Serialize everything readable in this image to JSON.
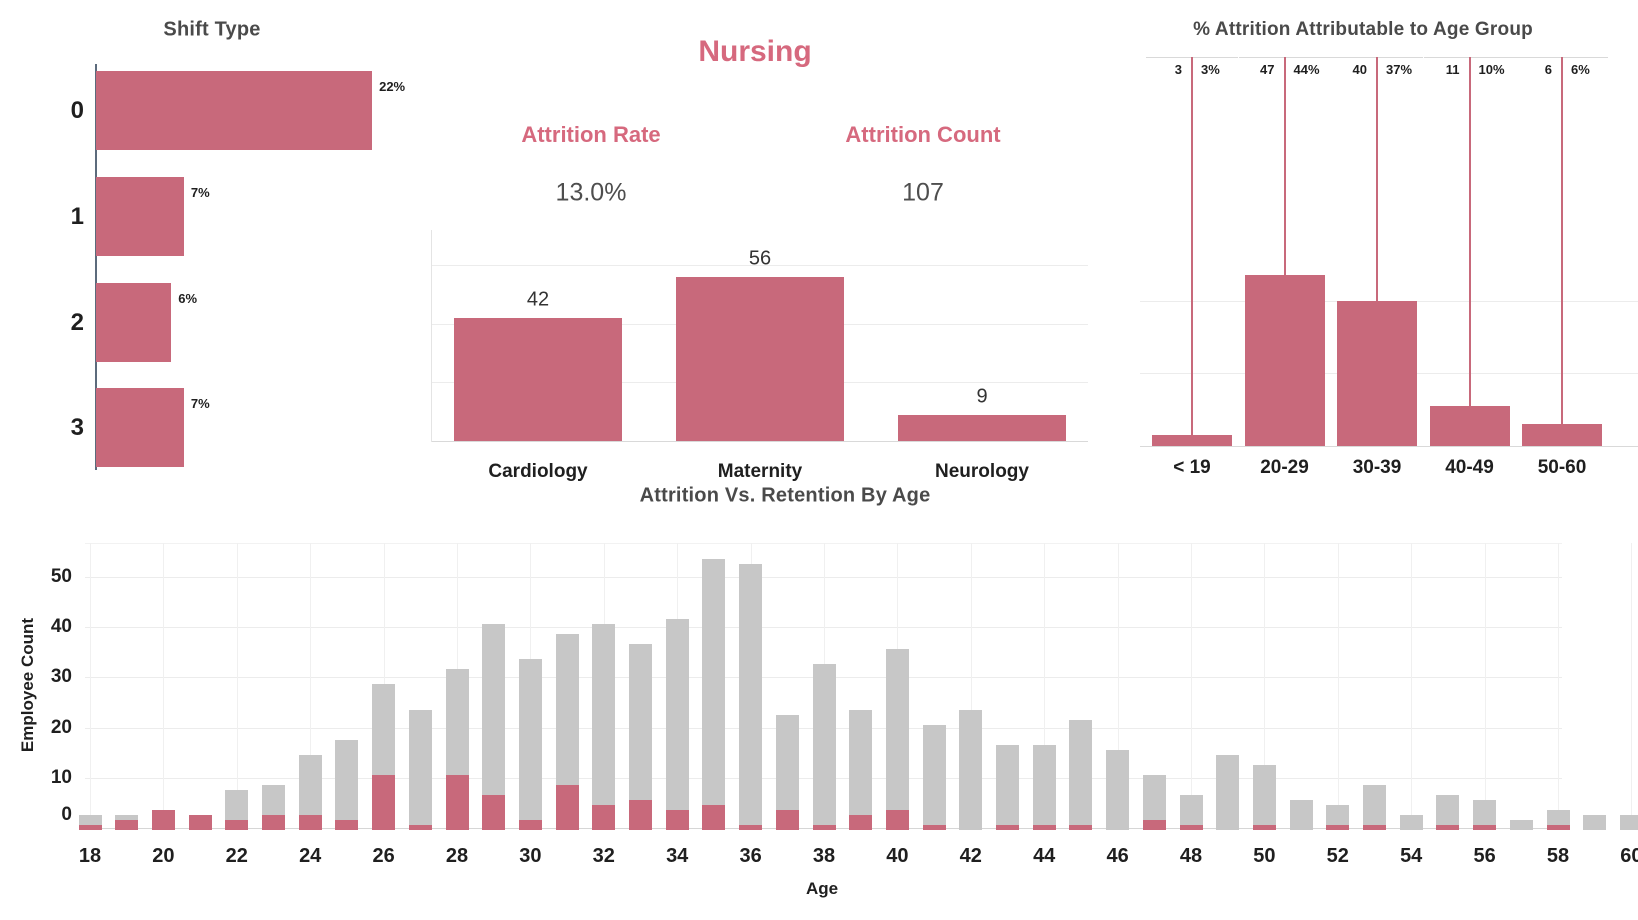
{
  "palette": {
    "bar_pink": "#c8697b",
    "accent_pink": "#d6697e",
    "bar_gray": "#c7c7c7",
    "text_dark": "#1f1f1f",
    "title_gray": "#4a4a4a",
    "kpi_value_gray": "#4e4e4e",
    "gridline": "#ececec",
    "axis_line": "#d9d9d9"
  },
  "center_header": {
    "title": "Nursing",
    "kpis": [
      {
        "label": "Attrition Rate",
        "value": "13.0%"
      },
      {
        "label": "Attrition Count",
        "value": "107"
      }
    ]
  },
  "chart_data": [
    {
      "id": "shift_type",
      "type": "bar",
      "orientation": "horizontal",
      "title": "Shift Type",
      "categories": [
        "0",
        "1",
        "2",
        "3"
      ],
      "values": [
        22,
        7,
        6,
        7
      ],
      "value_labels": [
        "22%",
        "7%",
        "6%",
        "7%"
      ],
      "unit": "percent",
      "xlim": [
        0,
        26
      ],
      "grid": false
    },
    {
      "id": "attrition_count_by_department",
      "type": "bar",
      "categories": [
        "Cardiology",
        "Maternity",
        "Neurology"
      ],
      "values": [
        42,
        56,
        9
      ],
      "value_labels": [
        "42",
        "56",
        "9"
      ],
      "ylim": [
        0,
        75
      ],
      "grid_step": 20,
      "grid": true
    },
    {
      "id": "pct_attrition_attributable_to_age_group",
      "type": "bar",
      "title": "% Attrition Attributable to Age Group",
      "categories": [
        "< 19",
        "20-29",
        "30-39",
        "40-49",
        "50-60"
      ],
      "values": [
        3,
        47,
        40,
        11,
        6
      ],
      "count_labels": [
        "3",
        "47",
        "40",
        "11",
        "6"
      ],
      "pct_labels": [
        "3%",
        "44%",
        "37%",
        "10%",
        "6%"
      ],
      "ylim": [
        0,
        107
      ],
      "grid_step": 20,
      "reference_lines": true
    },
    {
      "id": "attrition_vs_retention_by_age",
      "type": "bar",
      "stacked": true,
      "title": "Attrition Vs. Retention By Age",
      "xlabel": "Age",
      "ylabel": "Employee Count",
      "x": [
        18,
        19,
        20,
        21,
        22,
        23,
        24,
        25,
        26,
        27,
        28,
        29,
        30,
        31,
        32,
        33,
        34,
        35,
        36,
        37,
        38,
        39,
        40,
        41,
        42,
        43,
        44,
        45,
        46,
        47,
        48,
        49,
        50,
        51,
        52,
        53,
        54,
        55,
        56,
        57,
        58,
        59,
        60
      ],
      "series": [
        {
          "name": "Attrition",
          "values": [
            1,
            2,
            4,
            3,
            2,
            3,
            3,
            2,
            11,
            1,
            11,
            7,
            2,
            9,
            5,
            6,
            4,
            5,
            1,
            4,
            1,
            3,
            4,
            1,
            0,
            1,
            1,
            1,
            0,
            2,
            1,
            0,
            1,
            0,
            1,
            1,
            0,
            1,
            1,
            0,
            1,
            0,
            0
          ]
        },
        {
          "name": "Retention",
          "values": [
            2,
            1,
            0,
            0,
            6,
            6,
            12,
            16,
            18,
            23,
            21,
            34,
            32,
            30,
            36,
            31,
            38,
            49,
            52,
            19,
            32,
            21,
            32,
            20,
            24,
            16,
            16,
            21,
            16,
            9,
            6,
            15,
            12,
            6,
            4,
            8,
            3,
            6,
            5,
            2,
            3,
            3,
            3
          ]
        }
      ],
      "ylim": [
        0,
        56
      ],
      "yticks": [
        0,
        10,
        20,
        30,
        40,
        50
      ],
      "xticks": [
        18,
        20,
        22,
        24,
        26,
        28,
        30,
        32,
        34,
        36,
        38,
        40,
        42,
        44,
        46,
        48,
        50,
        52,
        54,
        56,
        58,
        60
      ],
      "grid": true
    }
  ]
}
